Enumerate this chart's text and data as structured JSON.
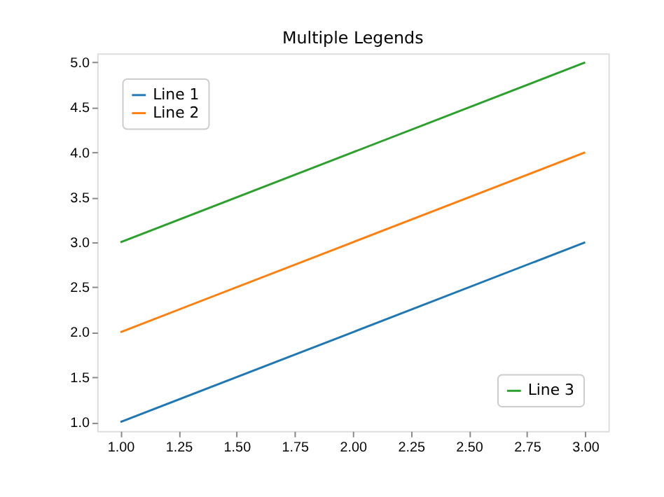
{
  "chart_data": {
    "type": "line",
    "title": "Multiple Legends",
    "x": [
      1,
      2,
      3
    ],
    "series": [
      {
        "name": "Line 1",
        "color": "#1f77b4",
        "values": [
          1,
          2,
          3
        ]
      },
      {
        "name": "Line 2",
        "color": "#ff7f0e",
        "values": [
          2,
          3,
          4
        ]
      },
      {
        "name": "Line 3",
        "color": "#2ca02c",
        "values": [
          3,
          4,
          5
        ]
      }
    ],
    "xlim": [
      0.9,
      3.1
    ],
    "xticks": [
      {
        "value": 1,
        "label": "1.00"
      },
      {
        "value": 1.25,
        "label": "1.25"
      },
      {
        "value": 1.5,
        "label": "1.50"
      },
      {
        "value": 1.75,
        "label": "1.75"
      },
      {
        "value": 2,
        "label": "2.00"
      },
      {
        "value": 2.25,
        "label": "2.25"
      },
      {
        "value": 2.5,
        "label": "2.50"
      },
      {
        "value": 2.75,
        "label": "2.75"
      },
      {
        "value": 3,
        "label": "3.00"
      }
    ],
    "ylim": [
      0.9,
      5.1
    ],
    "yticks": [
      {
        "value": 1,
        "label": "1.0"
      },
      {
        "value": 1.5,
        "label": "1.5"
      },
      {
        "value": 2,
        "label": "2.0"
      },
      {
        "value": 2.5,
        "label": "2.5"
      },
      {
        "value": 3,
        "label": "3.0"
      },
      {
        "value": 3.5,
        "label": "3.5"
      },
      {
        "value": 4,
        "label": "4.0"
      },
      {
        "value": 4.5,
        "label": "4.5"
      },
      {
        "value": 5,
        "label": "5.0"
      }
    ],
    "grid": false,
    "legend": [
      "top left",
      "top left",
      "bottom right"
    ]
  }
}
